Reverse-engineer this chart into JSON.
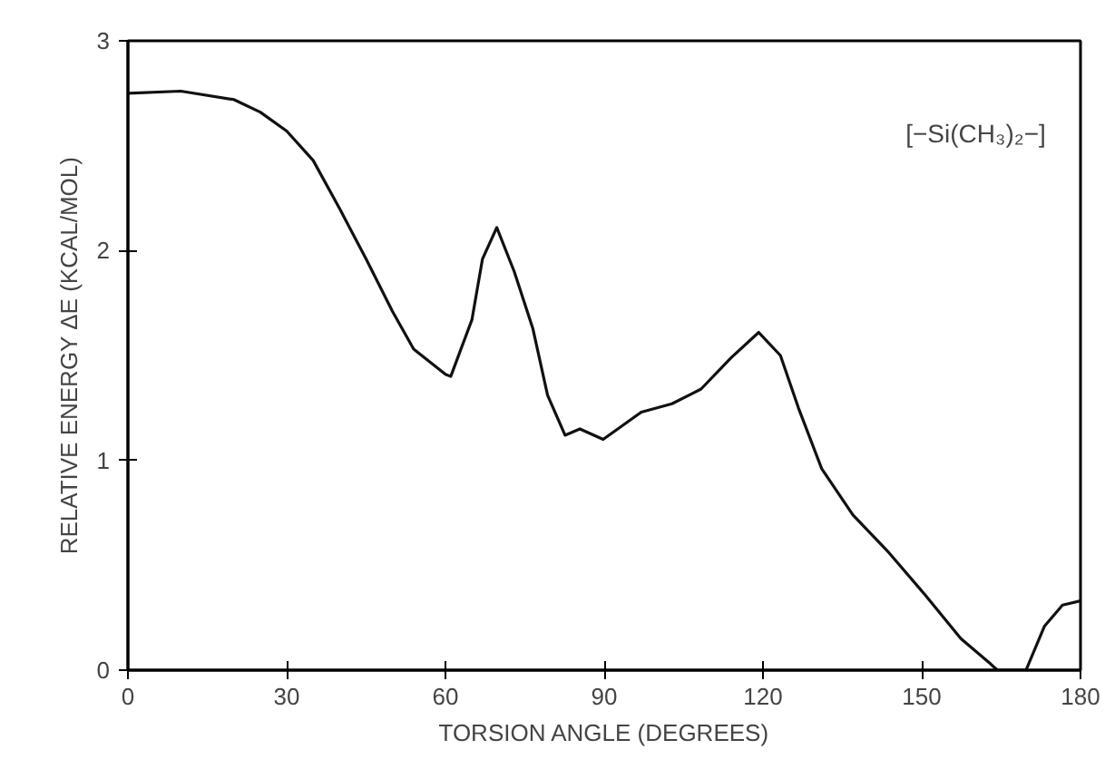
{
  "chart_data": {
    "type": "line",
    "xlabel": "TORSION ANGLE (DEGREES)",
    "ylabel": "RELATIVE ENERGY ΔE (KCAL/MOL)",
    "annotations": [
      "[−Si(CH₃)₂−]"
    ],
    "x": [
      0,
      10,
      20,
      25,
      30,
      35,
      40,
      45,
      50,
      54,
      56,
      60,
      61,
      65,
      67,
      69.7,
      73,
      76.5,
      79.3,
      82.6,
      85.4,
      89.8,
      97,
      102.8,
      108.3,
      114,
      119.2,
      123.3,
      126.7,
      131.1,
      137,
      143.8,
      150.6,
      157.4,
      163,
      164.3,
      169.7,
      173.2,
      176.6,
      180
    ],
    "series": [
      {
        "color": "#111111",
        "values": [
          2.75,
          2.76,
          2.72,
          2.66,
          2.57,
          2.43,
          2.2,
          1.96,
          1.71,
          1.53,
          1.49,
          1.41,
          1.4,
          1.67,
          1.96,
          2.11,
          1.9,
          1.63,
          1.31,
          1.12,
          1.15,
          1.1,
          1.23,
          1.27,
          1.34,
          1.49,
          1.61,
          1.5,
          1.25,
          0.96,
          0.74,
          0.56,
          0.36,
          0.15,
          0.03,
          0,
          0,
          0.21,
          0.31,
          0.33
        ]
      }
    ],
    "xlim": [
      0,
      180
    ],
    "xticks": [
      0,
      30,
      60,
      90,
      120,
      150,
      180
    ],
    "ylim": [
      0,
      3
    ],
    "yticks": [
      0,
      1,
      2,
      3
    ],
    "grid": false,
    "marker": "none",
    "line_style": "solid"
  }
}
